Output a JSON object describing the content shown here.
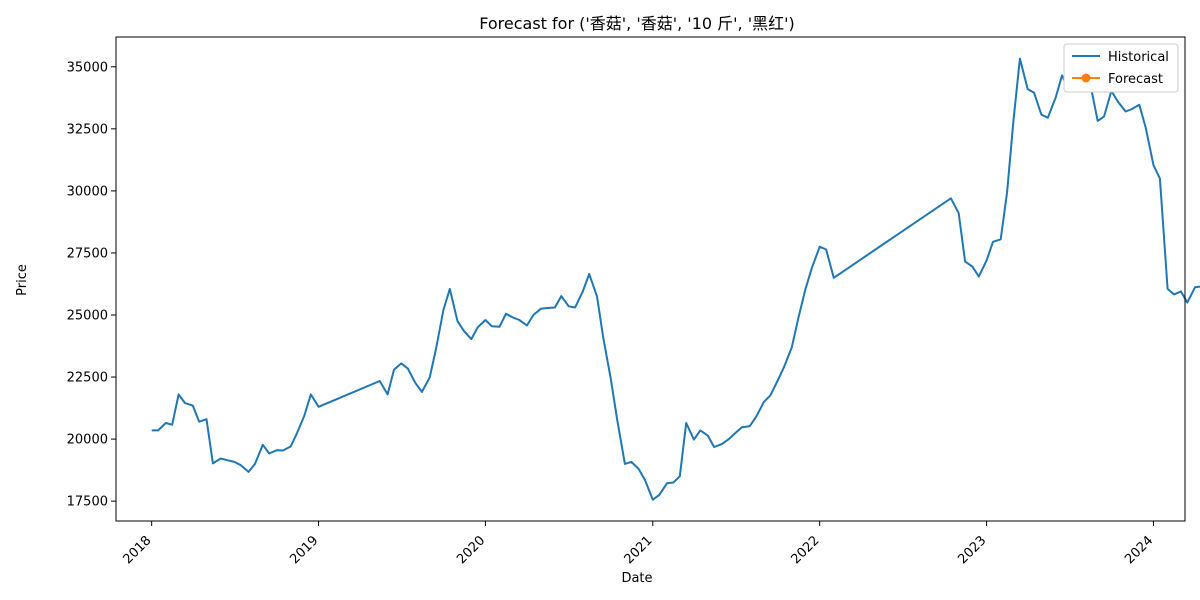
{
  "chart_data": {
    "type": "line",
    "title": "Forecast for ('香菇', '香菇', '10 斤', '黑红')",
    "xlabel": "Date",
    "ylabel": "Price",
    "xlim": [
      "2017-10-15",
      "2024-03-10"
    ],
    "ylim": [
      16700,
      36200
    ],
    "yticks": [
      17500,
      20000,
      22500,
      25000,
      27500,
      30000,
      32500,
      35000
    ],
    "xticks": [
      "2018-01-01",
      "2019-01-01",
      "2020-01-01",
      "2021-01-01",
      "2022-01-01",
      "2023-01-01",
      "2024-01-01"
    ],
    "xtick_labels": [
      "2018",
      "2019",
      "2020",
      "2021",
      "2022",
      "2023",
      "2024"
    ],
    "legend": {
      "position": "top-right"
    },
    "grid": false,
    "series": [
      {
        "name": "Historical",
        "color": "#1f77b4",
        "marker": "none",
        "points": [
          [
            "2018-01-01",
            20350
          ],
          [
            "2018-01-15",
            20350
          ],
          [
            "2018-02-01",
            20650
          ],
          [
            "2018-02-15",
            20580
          ],
          [
            "2018-03-01",
            21800
          ],
          [
            "2018-03-15",
            21450
          ],
          [
            "2018-04-01",
            21350
          ],
          [
            "2018-04-15",
            20700
          ],
          [
            "2018-05-01",
            20800
          ],
          [
            "2018-05-15",
            19020
          ],
          [
            "2018-06-01",
            19220
          ],
          [
            "2018-06-15",
            19150
          ],
          [
            "2018-07-01",
            19080
          ],
          [
            "2018-07-15",
            18950
          ],
          [
            "2018-08-01",
            18680
          ],
          [
            "2018-08-15",
            19000
          ],
          [
            "2018-09-01",
            19770
          ],
          [
            "2018-09-15",
            19420
          ],
          [
            "2018-10-01",
            19550
          ],
          [
            "2018-10-15",
            19540
          ],
          [
            "2018-11-01",
            19700
          ],
          [
            "2018-11-15",
            20250
          ],
          [
            "2018-12-01",
            20950
          ],
          [
            "2018-12-15",
            21800
          ],
          [
            "2019-01-01",
            21300
          ],
          [
            "2019-05-15",
            22340
          ],
          [
            "2019-06-01",
            21800
          ],
          [
            "2019-06-15",
            22800
          ],
          [
            "2019-07-01",
            23050
          ],
          [
            "2019-07-15",
            22850
          ],
          [
            "2019-08-01",
            22250
          ],
          [
            "2019-08-15",
            21900
          ],
          [
            "2019-09-01",
            22480
          ],
          [
            "2019-09-15",
            23650
          ],
          [
            "2019-10-01",
            25200
          ],
          [
            "2019-10-15",
            26050
          ],
          [
            "2019-11-01",
            24750
          ],
          [
            "2019-11-15",
            24350
          ],
          [
            "2019-12-01",
            24030
          ],
          [
            "2019-12-15",
            24500
          ],
          [
            "2020-01-01",
            24800
          ],
          [
            "2020-01-15",
            24550
          ],
          [
            "2020-02-01",
            24530
          ],
          [
            "2020-02-15",
            25050
          ],
          [
            "2020-03-01",
            24900
          ],
          [
            "2020-03-15",
            24800
          ],
          [
            "2020-04-01",
            24580
          ],
          [
            "2020-04-15",
            25000
          ],
          [
            "2020-05-01",
            25250
          ],
          [
            "2020-05-15",
            25280
          ],
          [
            "2020-06-01",
            25300
          ],
          [
            "2020-06-15",
            25760
          ],
          [
            "2020-07-01",
            25350
          ],
          [
            "2020-07-15",
            25300
          ],
          [
            "2020-08-01",
            25950
          ],
          [
            "2020-08-15",
            26650
          ],
          [
            "2020-09-01",
            25750
          ],
          [
            "2020-09-15",
            24050
          ],
          [
            "2020-10-01",
            22450
          ],
          [
            "2020-10-15",
            20800
          ],
          [
            "2020-11-01",
            19000
          ],
          [
            "2020-11-15",
            19080
          ],
          [
            "2020-12-01",
            18800
          ],
          [
            "2020-12-15",
            18350
          ],
          [
            "2021-01-01",
            17560
          ],
          [
            "2021-01-15",
            17750
          ],
          [
            "2021-02-01",
            18220
          ],
          [
            "2021-02-15",
            18250
          ],
          [
            "2021-03-01",
            18500
          ],
          [
            "2021-03-15",
            20650
          ],
          [
            "2021-04-01",
            19980
          ],
          [
            "2021-04-15",
            20350
          ],
          [
            "2021-05-01",
            20150
          ],
          [
            "2021-05-15",
            19680
          ],
          [
            "2021-06-01",
            19800
          ],
          [
            "2021-06-15",
            19980
          ],
          [
            "2021-07-01",
            20250
          ],
          [
            "2021-07-15",
            20480
          ],
          [
            "2021-08-01",
            20520
          ],
          [
            "2021-08-15",
            20900
          ],
          [
            "2021-09-01",
            21500
          ],
          [
            "2021-09-15",
            21760
          ],
          [
            "2021-10-01",
            22350
          ],
          [
            "2021-10-15",
            22900
          ],
          [
            "2021-11-01",
            23700
          ],
          [
            "2021-11-15",
            24850
          ],
          [
            "2021-12-01",
            26050
          ],
          [
            "2021-12-15",
            26900
          ],
          [
            "2022-01-01",
            27750
          ],
          [
            "2022-01-15",
            27640
          ],
          [
            "2022-02-01",
            26500
          ],
          [
            "2022-10-15",
            29700
          ],
          [
            "2022-11-01",
            29100
          ],
          [
            "2022-11-15",
            27150
          ],
          [
            "2022-12-01",
            26950
          ],
          [
            "2022-12-15",
            26550
          ],
          [
            "2023-01-01",
            27200
          ],
          [
            "2023-01-15",
            27950
          ],
          [
            "2023-02-01",
            28050
          ],
          [
            "2023-02-15",
            29950
          ],
          [
            "2023-03-01",
            32850
          ],
          [
            "2023-03-15",
            35330
          ],
          [
            "2023-04-01",
            34100
          ],
          [
            "2023-04-15",
            33950
          ],
          [
            "2023-05-01",
            33070
          ],
          [
            "2023-05-15",
            32950
          ],
          [
            "2023-06-01",
            33750
          ],
          [
            "2023-06-15",
            34650
          ],
          [
            "2023-07-01",
            34050
          ],
          [
            "2023-07-15",
            34250
          ],
          [
            "2023-08-01",
            34270
          ],
          [
            "2023-08-15",
            34380
          ],
          [
            "2023-09-01",
            32820
          ],
          [
            "2023-09-15",
            33000
          ],
          [
            "2023-10-01",
            34030
          ],
          [
            "2023-10-15",
            33600
          ],
          [
            "2023-11-01",
            33200
          ],
          [
            "2023-11-15",
            33300
          ],
          [
            "2023-12-01",
            33470
          ],
          [
            "2023-12-15",
            32550
          ],
          [
            "2024-01-01",
            31030
          ],
          [
            "2024-01-15",
            30500
          ],
          [
            "2024-02-01",
            26050
          ],
          [
            "2024-02-15",
            25830
          ],
          [
            "2024-03-01",
            25950
          ],
          [
            "2024-03-15",
            25500
          ],
          [
            "2024-04-01",
            26120
          ],
          [
            "2024-04-15",
            26150
          ]
        ]
      },
      {
        "name": "Forecast",
        "color": "#ff7f0e",
        "marker": "circle",
        "points": []
      }
    ]
  }
}
